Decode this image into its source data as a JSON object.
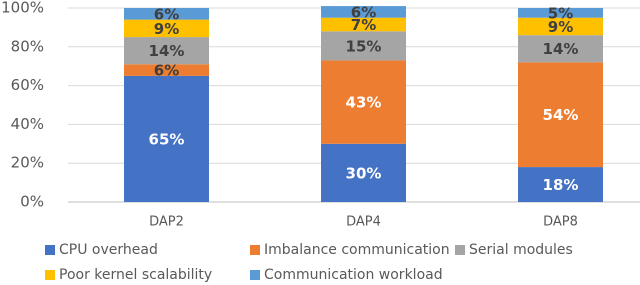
{
  "chart_data": {
    "type": "stacked_bar",
    "categories": [
      "DAP2",
      "DAP4",
      "DAP8"
    ],
    "series": [
      {
        "name": "CPU overhead",
        "color": "#4472c4",
        "values": [
          65,
          30,
          18
        ],
        "value_labels": [
          "65%",
          "30%",
          "18%"
        ]
      },
      {
        "name": "Imbalance communication",
        "color": "#ed7d31",
        "values": [
          6,
          43,
          54
        ],
        "value_labels": [
          "6%",
          "43%",
          "54%"
        ]
      },
      {
        "name": "Serial modules",
        "color": "#a5a5a5",
        "values": [
          14,
          15,
          14
        ],
        "value_labels": [
          "14%",
          "15%",
          "14%"
        ]
      },
      {
        "name": "Poor kernel scalability",
        "color": "#ffc000",
        "values": [
          9,
          7,
          9
        ],
        "value_labels": [
          "9%",
          "7%",
          "9%"
        ]
      },
      {
        "name": "Communication workload",
        "color": "#5b9bd5",
        "values": [
          6,
          6,
          5
        ],
        "value_labels": [
          "6%",
          "6%",
          "5%"
        ]
      }
    ],
    "ylim": [
      0,
      100
    ],
    "yticks": [
      {
        "value": 0,
        "label": "0%"
      },
      {
        "value": 20,
        "label": "20%"
      },
      {
        "value": 40,
        "label": "40%"
      },
      {
        "value": 60,
        "label": "60%"
      },
      {
        "value": 80,
        "label": "80%"
      },
      {
        "value": 100,
        "label": "100%"
      }
    ],
    "grid": true,
    "legend": "bottom"
  }
}
